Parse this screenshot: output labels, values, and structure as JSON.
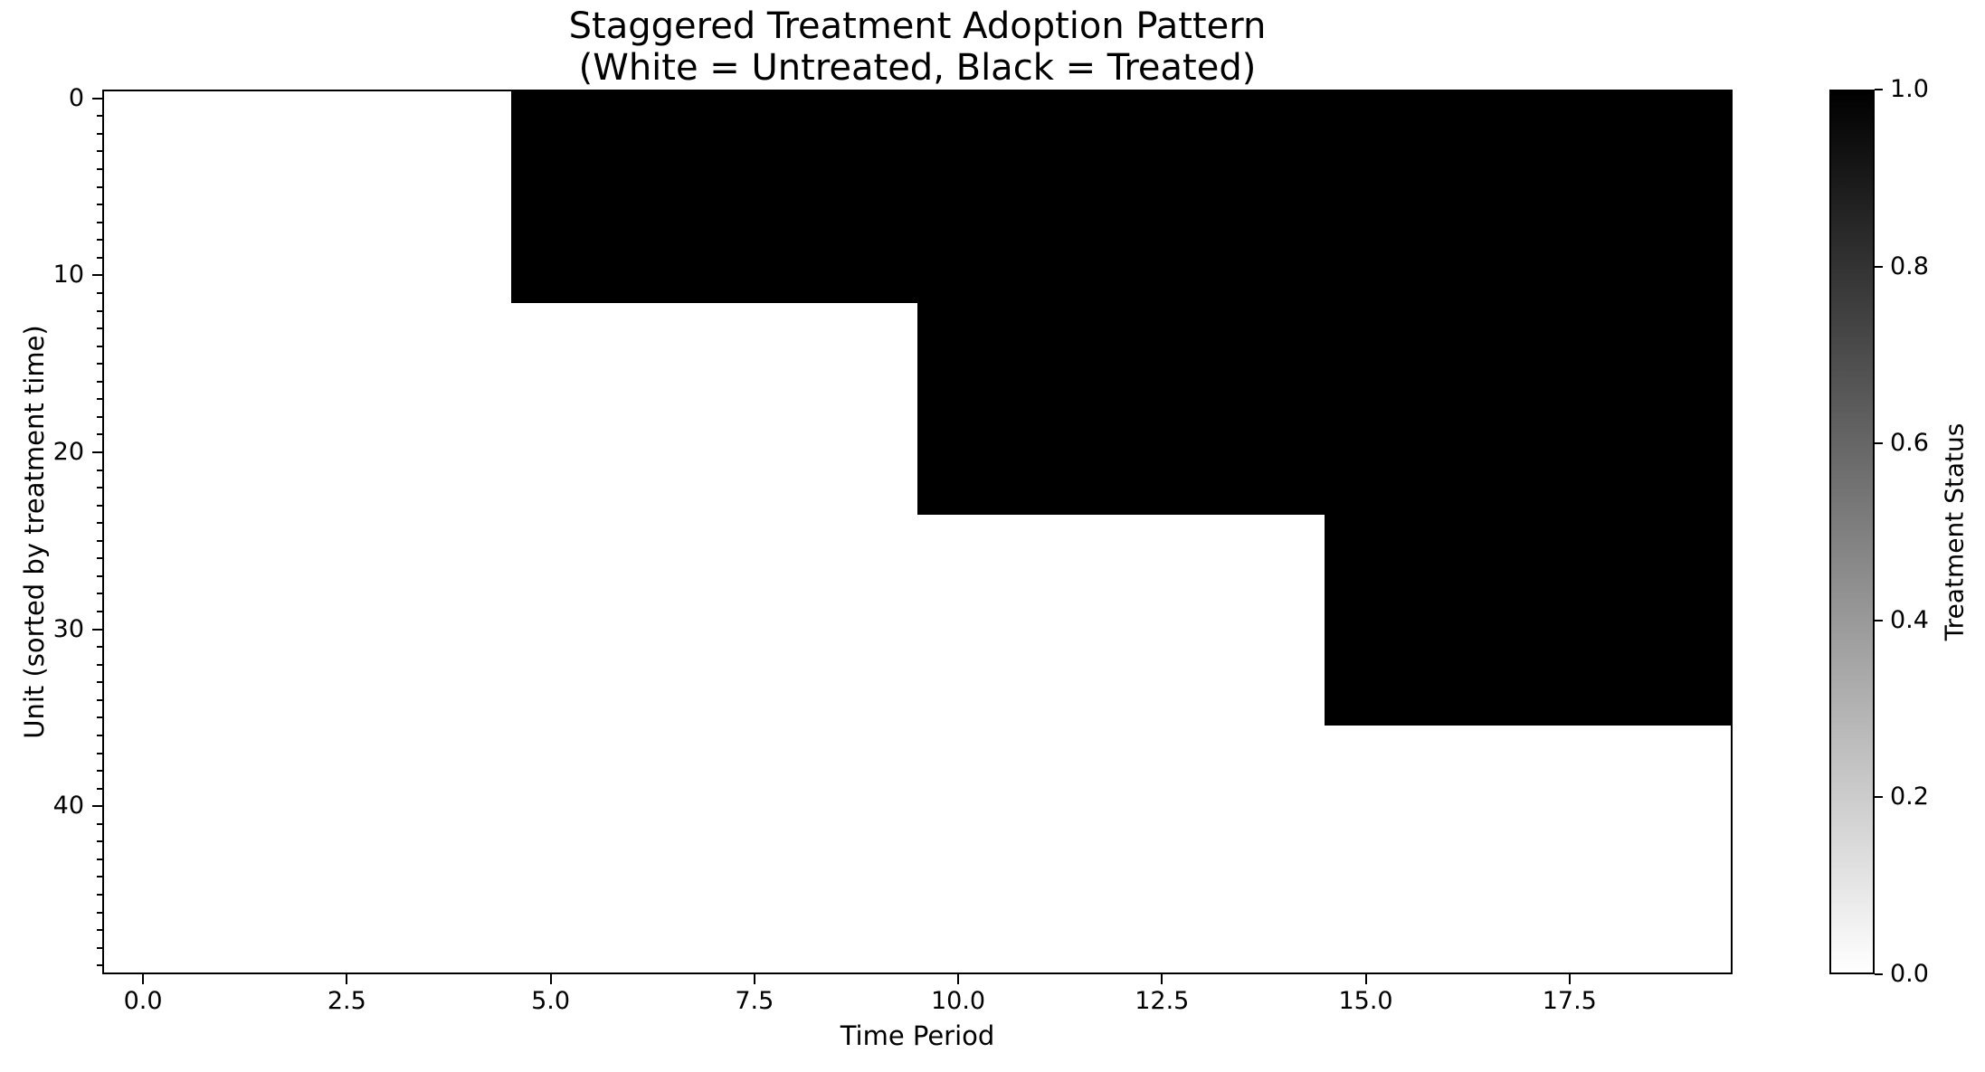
{
  "figure": {
    "title_line1": "Staggered Treatment Adoption Pattern",
    "title_line2": "(White = Untreated, Black = Treated)",
    "xlabel": "Time Period",
    "ylabel": "Unit (sorted by treatment time)",
    "colorbar_label": "Treatment Status"
  },
  "chart_data": {
    "type": "heatmap",
    "title": "Staggered Treatment Adoption Pattern\n(White = Untreated, Black = Treated)",
    "xlabel": "Time Period",
    "ylabel": "Unit (sorted by treatment time)",
    "colorbar_label": "Treatment Status",
    "n_units": 50,
    "n_periods": 20,
    "x_range": [
      -0.5,
      19.5
    ],
    "y_range": [
      -0.5,
      49.5
    ],
    "y_axis_inverted": true,
    "grid": false,
    "legend": false,
    "x_ticks": [
      0,
      2.5,
      5,
      7.5,
      10,
      12.5,
      15,
      17.5
    ],
    "x_tick_labels": [
      "0.0",
      "2.5",
      "5.0",
      "7.5",
      "10.0",
      "12.5",
      "15.0",
      "17.5"
    ],
    "y_major_ticks": [
      0,
      10,
      20,
      30,
      40
    ],
    "y_tick_labels": [
      "0",
      "10",
      "20",
      "30",
      "40"
    ],
    "y_minor_tick_interval": 1,
    "colorbar_ticks": [
      0.0,
      0.2,
      0.4,
      0.6,
      0.8,
      1.0
    ],
    "colorbar_tick_labels": [
      "0.0",
      "0.2",
      "0.4",
      "0.6",
      "0.8",
      "1.0"
    ],
    "colorbar_range": [
      0,
      1
    ],
    "value_encoding": "0 = untreated (white), 1 = treated (black); treatment is absorbing through period 19",
    "cohorts": [
      {
        "unit_start": 0,
        "unit_end": 11,
        "first_treated_period": 5
      },
      {
        "unit_start": 12,
        "unit_end": 23,
        "first_treated_period": 10
      },
      {
        "unit_start": 24,
        "unit_end": 35,
        "first_treated_period": 15
      },
      {
        "unit_start": 36,
        "unit_end": 49,
        "first_treated_period": null
      }
    ],
    "colors": {
      "treated": "#000000",
      "untreated": "#ffffff"
    }
  }
}
